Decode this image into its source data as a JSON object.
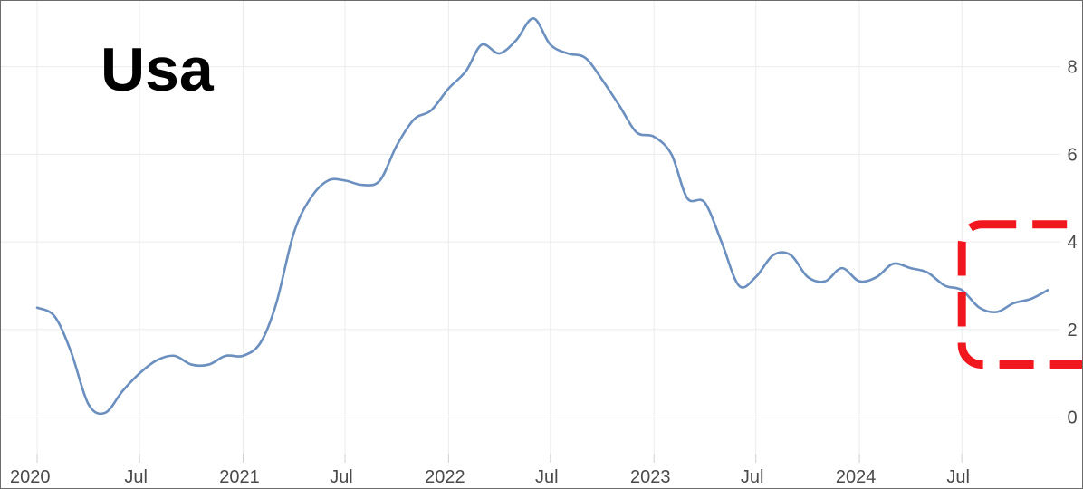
{
  "chart_data": {
    "type": "line",
    "title": "Usa",
    "xlabel": "",
    "ylabel": "",
    "x_ticks": [
      {
        "date": "2020-01-01",
        "label": "2020"
      },
      {
        "date": "2020-07-01",
        "label": "Jul"
      },
      {
        "date": "2021-01-01",
        "label": "2021"
      },
      {
        "date": "2021-07-01",
        "label": "Jul"
      },
      {
        "date": "2022-01-01",
        "label": "2022"
      },
      {
        "date": "2022-07-01",
        "label": "Jul"
      },
      {
        "date": "2023-01-01",
        "label": "2023"
      },
      {
        "date": "2023-07-01",
        "label": "Jul"
      },
      {
        "date": "2024-01-01",
        "label": "2024"
      },
      {
        "date": "2024-07-01",
        "label": "Jul"
      }
    ],
    "y_ticks": [
      0,
      2,
      4,
      6,
      8
    ],
    "ylim": [
      -1,
      9.5
    ],
    "xlim": [
      "2020-01-01",
      "2024-12-15"
    ],
    "grid": true,
    "line_color": "#6b8fbf",
    "highlight_box": {
      "from": "2024-07-01",
      "to": "2024-12-15",
      "ymin": 1.2,
      "ymax": 4.4,
      "color": "#f0171f"
    },
    "series": [
      {
        "x": [
          "2020-01-01",
          "2020-02-01",
          "2020-03-01",
          "2020-04-01",
          "2020-05-01",
          "2020-06-01",
          "2020-07-01",
          "2020-08-01",
          "2020-09-01",
          "2020-10-01",
          "2020-11-01",
          "2020-12-01",
          "2021-01-01",
          "2021-02-01",
          "2021-03-01",
          "2021-04-01",
          "2021-05-01",
          "2021-06-01",
          "2021-07-01",
          "2021-08-01",
          "2021-09-01",
          "2021-10-01",
          "2021-11-01",
          "2021-12-01",
          "2022-01-01",
          "2022-02-01",
          "2022-03-01",
          "2022-04-01",
          "2022-05-01",
          "2022-06-01",
          "2022-07-01",
          "2022-08-01",
          "2022-09-01",
          "2022-10-01",
          "2022-11-01",
          "2022-12-01",
          "2023-01-01",
          "2023-02-01",
          "2023-03-01",
          "2023-04-01",
          "2023-05-01",
          "2023-06-01",
          "2023-07-01",
          "2023-08-01",
          "2023-09-01",
          "2023-10-01",
          "2023-11-01",
          "2023-12-01",
          "2024-01-01",
          "2024-02-01",
          "2024-03-01",
          "2024-04-01",
          "2024-05-01",
          "2024-06-01",
          "2024-07-01",
          "2024-08-01",
          "2024-09-01",
          "2024-10-01",
          "2024-11-01",
          "2024-12-01"
        ],
        "values": [
          2.5,
          2.3,
          1.5,
          0.3,
          0.1,
          0.6,
          1.0,
          1.3,
          1.4,
          1.2,
          1.2,
          1.4,
          1.4,
          1.7,
          2.6,
          4.2,
          5.0,
          5.4,
          5.4,
          5.3,
          5.4,
          6.2,
          6.8,
          7.0,
          7.5,
          7.9,
          8.5,
          8.3,
          8.6,
          9.1,
          8.5,
          8.3,
          8.2,
          7.7,
          7.1,
          6.5,
          6.4,
          6.0,
          5.0,
          4.9,
          4.0,
          3.0,
          3.2,
          3.7,
          3.7,
          3.2,
          3.1,
          3.4,
          3.1,
          3.2,
          3.5,
          3.4,
          3.3,
          3.0,
          2.9,
          2.5,
          2.4,
          2.6,
          2.7,
          2.9
        ]
      }
    ]
  }
}
